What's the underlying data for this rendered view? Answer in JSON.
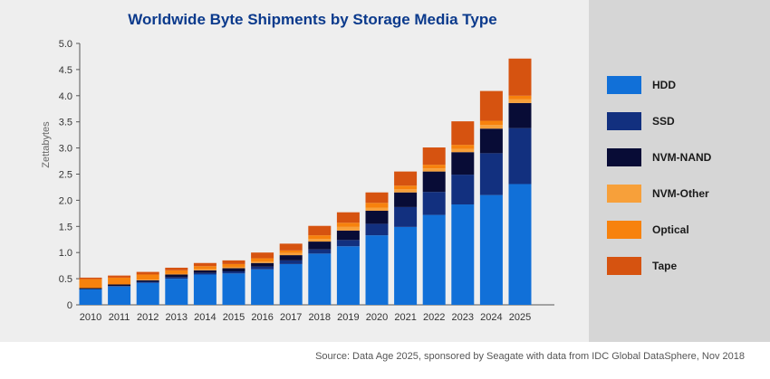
{
  "chart_data": {
    "type": "bar",
    "stacked": true,
    "title": "Worldwide Byte Shipments by Storage Media Type",
    "ylabel": "Zettabytes",
    "xlabel": "",
    "ylim": [
      0,
      5.0
    ],
    "yticks": [
      "0",
      "0.5",
      "1.0",
      "1.5",
      "2.0",
      "2.5",
      "3.0",
      "3.5",
      "4.0",
      "4.5",
      "5.0"
    ],
    "grid": false,
    "legend_position": "right",
    "categories": [
      "2010",
      "2011",
      "2012",
      "2013",
      "2014",
      "2015",
      "2016",
      "2017",
      "2018",
      "2019",
      "2020",
      "2021",
      "2022",
      "2023",
      "2024",
      "2025"
    ],
    "series": [
      {
        "name": "HDD",
        "color": "#1170d8",
        "values": [
          0.3,
          0.35,
          0.42,
          0.5,
          0.58,
          0.6,
          0.68,
          0.78,
          0.98,
          1.12,
          1.33,
          1.49,
          1.72,
          1.92,
          2.1,
          2.31
        ]
      },
      {
        "name": "SSD",
        "color": "#12307f",
        "values": [
          0.0,
          0.01,
          0.02,
          0.03,
          0.03,
          0.04,
          0.05,
          0.07,
          0.08,
          0.12,
          0.22,
          0.38,
          0.44,
          0.57,
          0.8,
          1.07
        ]
      },
      {
        "name": "NVM-NAND",
        "color": "#080c36",
        "values": [
          0.02,
          0.03,
          0.03,
          0.05,
          0.05,
          0.06,
          0.07,
          0.1,
          0.15,
          0.18,
          0.25,
          0.28,
          0.39,
          0.43,
          0.47,
          0.48
        ]
      },
      {
        "name": "NVM-Other",
        "color": "#f7a03a",
        "values": [
          0.0,
          0.0,
          0.01,
          0.01,
          0.02,
          0.02,
          0.03,
          0.04,
          0.05,
          0.07,
          0.06,
          0.06,
          0.06,
          0.06,
          0.07,
          0.07
        ]
      },
      {
        "name": "Optical",
        "color": "#f7820d",
        "values": [
          0.17,
          0.13,
          0.1,
          0.07,
          0.06,
          0.06,
          0.06,
          0.05,
          0.07,
          0.08,
          0.09,
          0.07,
          0.07,
          0.08,
          0.08,
          0.07
        ]
      },
      {
        "name": "Tape",
        "color": "#d65310",
        "values": [
          0.03,
          0.04,
          0.05,
          0.05,
          0.06,
          0.07,
          0.11,
          0.13,
          0.18,
          0.2,
          0.2,
          0.27,
          0.33,
          0.45,
          0.57,
          0.71
        ]
      }
    ],
    "source": "Source: Data Age 2025, sponsored by Seagate with data from IDC Global DataSphere, Nov 2018"
  },
  "colors": {
    "title": "#0b3a8c",
    "plot_background": "#eeeeee",
    "legend_background": "#d6d6d6",
    "axis_text": "#333333"
  }
}
